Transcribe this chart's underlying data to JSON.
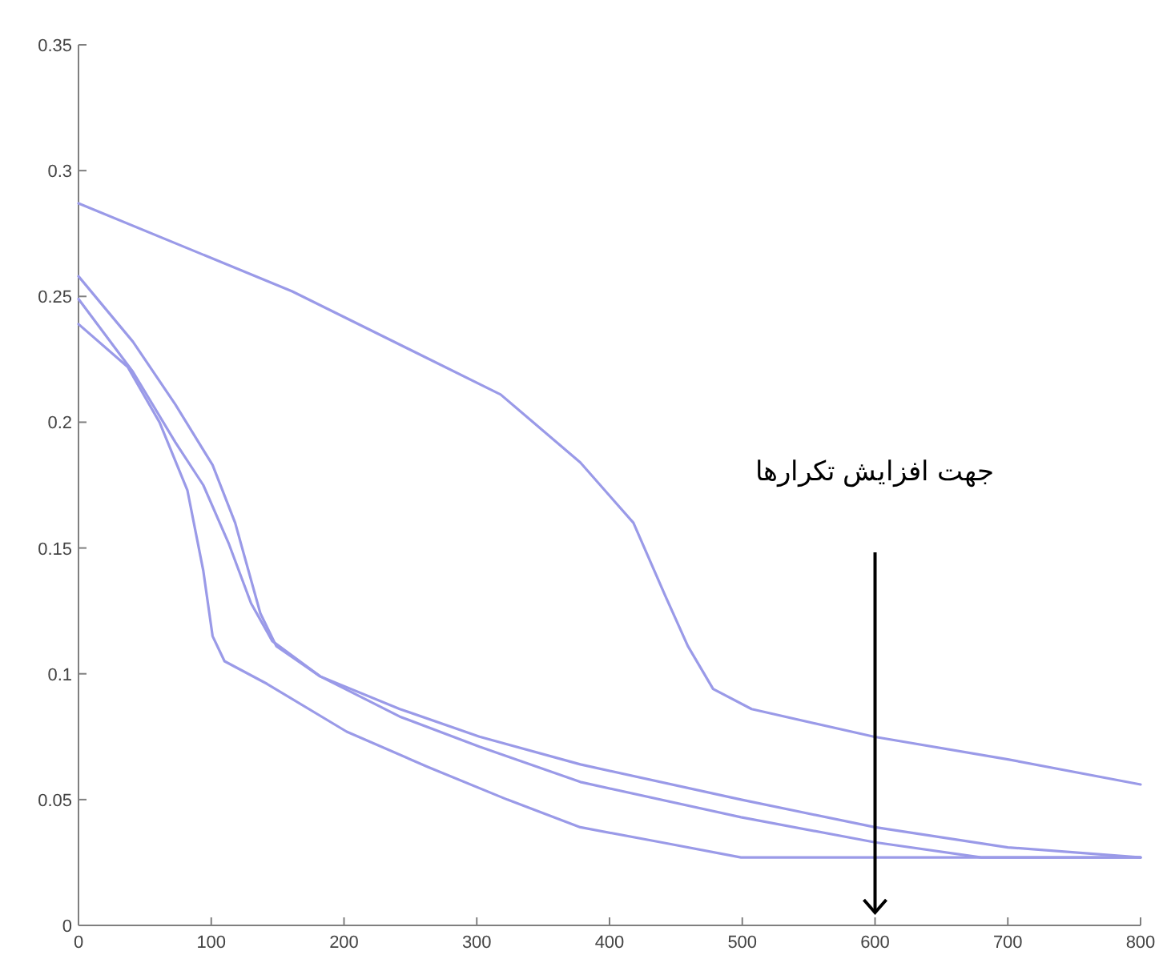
{
  "chart_data": {
    "type": "line",
    "series": [
      {
        "color": "#9a9ae8",
        "x": [
          0,
          161,
          318,
          378,
          418,
          442,
          459,
          478,
          507,
          599,
          700,
          800
        ],
        "values": [
          0.287,
          0.252,
          0.211,
          0.184,
          0.16,
          0.131,
          0.111,
          0.094,
          0.086,
          0.075,
          0.066,
          0.056
        ]
      },
      {
        "color": "#9a9ae8",
        "x": [
          0,
          41,
          73,
          101,
          118,
          137,
          149,
          182,
          242,
          302,
          378,
          499,
          600,
          700,
          800
        ],
        "values": [
          0.258,
          0.232,
          0.207,
          0.183,
          0.16,
          0.124,
          0.111,
          0.099,
          0.086,
          0.075,
          0.064,
          0.05,
          0.039,
          0.031,
          0.027
        ]
      },
      {
        "color": "#9a9ae8",
        "x": [
          0,
          41,
          73,
          94,
          113,
          130,
          146,
          182,
          242,
          302,
          378,
          499,
          600,
          680,
          800
        ],
        "values": [
          0.249,
          0.22,
          0.192,
          0.175,
          0.152,
          0.128,
          0.113,
          0.099,
          0.083,
          0.071,
          0.057,
          0.043,
          0.033,
          0.027,
          0.027
        ]
      },
      {
        "color": "#9a9ae8",
        "x": [
          0,
          37,
          61,
          82,
          94,
          101,
          110,
          142,
          202,
          263,
          323,
          378,
          439,
          499,
          600,
          700,
          800
        ],
        "values": [
          0.239,
          0.222,
          0.2,
          0.173,
          0.141,
          0.115,
          0.105,
          0.096,
          0.077,
          0.063,
          0.05,
          0.039,
          0.033,
          0.027,
          0.027,
          0.027,
          0.027
        ]
      }
    ],
    "xlim": [
      0,
      800
    ],
    "xticks": [
      0,
      100,
      200,
      300,
      400,
      500,
      600,
      700,
      800
    ],
    "ylim": [
      0,
      0.35
    ],
    "yticks": [
      0,
      0.05,
      0.1,
      0.15,
      0.2,
      0.25,
      0.3,
      0.35
    ],
    "grid": false,
    "marker": "none",
    "line_style": "solid",
    "annotations": [
      "جهت افزایش تکرارها"
    ]
  }
}
